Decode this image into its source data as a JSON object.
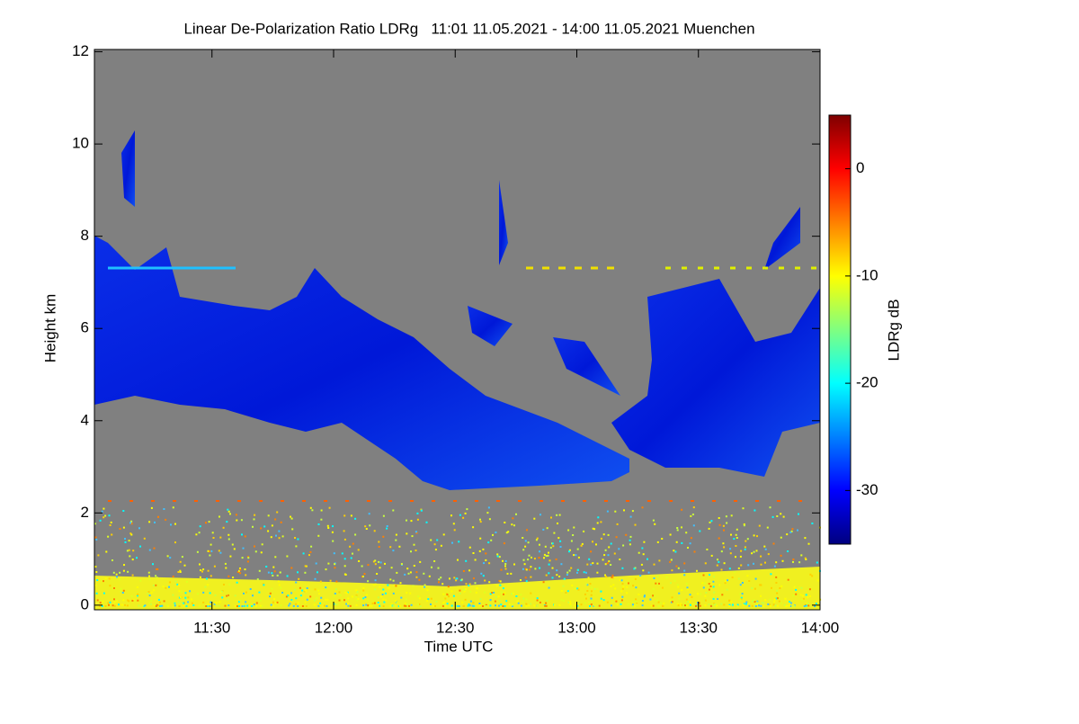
{
  "chart_data": {
    "type": "heatmap",
    "title": "Linear De-Polarization Ratio LDRg   11:01 11.05.2021 - 14:00 11.05.2021 Muenchen",
    "x_label": "Time UTC",
    "y_label": "Height km",
    "xlim": [
      661,
      840
    ],
    "xticks": [
      {
        "value": 690,
        "label": "11:30"
      },
      {
        "value": 720,
        "label": "12:00"
      },
      {
        "value": 750,
        "label": "12:30"
      },
      {
        "value": 780,
        "label": "13:00"
      },
      {
        "value": 810,
        "label": "13:30"
      },
      {
        "value": 840,
        "label": "14:00"
      }
    ],
    "ylim": [
      -0.1,
      12.05
    ],
    "yticks": [
      0,
      2,
      4,
      6,
      8,
      10,
      12
    ],
    "colorbar": {
      "label": "LDRg dB",
      "clim": [
        -35,
        5
      ],
      "ticks": [
        0,
        -10,
        -20,
        -30
      ],
      "colormap": [
        "#00007f",
        "#0000ff",
        "#0080ff",
        "#00ffff",
        "#80ff80",
        "#ffff00",
        "#ff8000",
        "#ff0000",
        "#7f0000"
      ]
    },
    "background": "#808080"
  }
}
